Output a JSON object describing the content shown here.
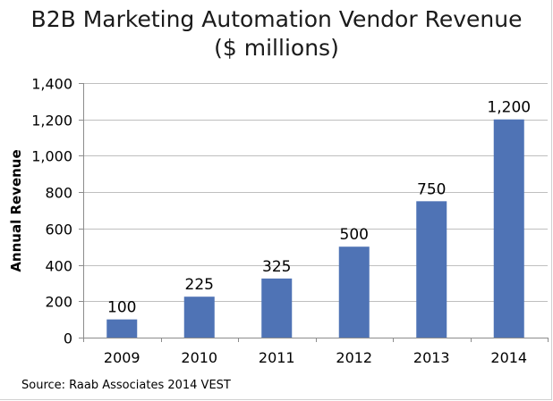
{
  "chart_data": {
    "type": "bar",
    "title": "B2B Marketing Automation Vendor Revenue",
    "subtitle": "($ millions)",
    "ylabel": "Annual Revenue",
    "xlabel": "",
    "categories": [
      "2009",
      "2010",
      "2011",
      "2012",
      "2013",
      "2014"
    ],
    "values": [
      100,
      225,
      325,
      500,
      750,
      1200
    ],
    "data_labels": [
      "100",
      "225",
      "325",
      "500",
      "750",
      "1,200"
    ],
    "ylim": [
      0,
      1400
    ],
    "yticks": [
      0,
      200,
      400,
      600,
      800,
      1000,
      1200,
      1400
    ],
    "ytick_labels": [
      "0",
      "200",
      "400",
      "600",
      "800",
      "1,000",
      "1,200",
      "1,400"
    ],
    "grid": true,
    "legend": "none",
    "bar_color": "#4f73b5",
    "grid_color": "#bfbfbf",
    "source": "Source: Raab Associates 2014 VEST"
  }
}
